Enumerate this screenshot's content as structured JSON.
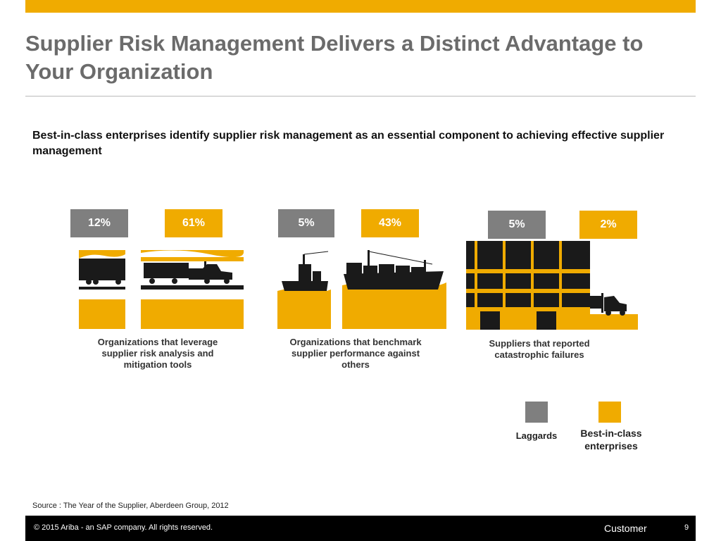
{
  "slide": {
    "title": "Supplier Risk Management Delivers a Distinct Advantage to Your Organization",
    "subtitle": "Best-in-class enterprises identify  supplier risk management as an essential component to achieving effective supplier management",
    "source": "Source :  The Year of the Supplier, Aberdeen Group, 2012",
    "footer": {
      "copyright": "©  2015 Ariba - an SAP company. All rights reserved.",
      "classification": "Customer",
      "page": "9"
    }
  },
  "colors": {
    "laggards": "#7f7f7f",
    "best_in_class": "#f0ab00",
    "silhouette": "#1a1a1a"
  },
  "chart_data": {
    "type": "bar",
    "categories": [
      "Organizations that leverage supplier risk analysis and mitigation tools",
      "Organizations that benchmark supplier performance against others",
      "Suppliers that reported catastrophic failures"
    ],
    "series": [
      {
        "name": "Laggards",
        "values": [
          12,
          5,
          5
        ],
        "labels": [
          "12%",
          "5%",
          "5%"
        ]
      },
      {
        "name": "Best-in-class enterprises",
        "values": [
          61,
          43,
          2
        ],
        "labels": [
          "61%",
          "43%",
          "2%"
        ]
      }
    ],
    "unit": "%",
    "legend": "bottom-right",
    "icons": [
      "truck-icon",
      "cargo-ship-icon",
      "warehouse-forklift-icon"
    ]
  },
  "legend": {
    "laggards": "Laggards",
    "best_in_class": "Best-in-class enterprises"
  }
}
